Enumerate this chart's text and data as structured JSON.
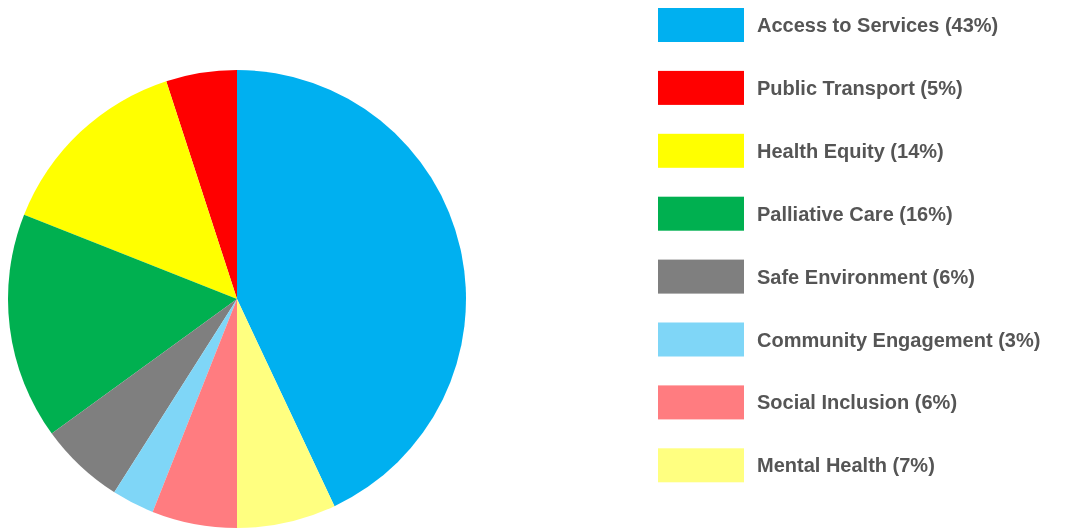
{
  "chart_data": {
    "type": "pie",
    "categories": [
      "Access to Services (43%)",
      "Public Transport (5%)",
      "Health Equity (14%)",
      "Palliative Care (16%)",
      "Safe Environment (6%)",
      "Community Engagement (3%)",
      "Social Inclusion (6%)",
      "Mental Health (7%)"
    ],
    "values": [
      43,
      5,
      14,
      16,
      6,
      3,
      6,
      7
    ],
    "colors": [
      "#00b0f0",
      "#ff0000",
      "#ffff00",
      "#00b050",
      "#7f7f7f",
      "#7fd6f7",
      "#ff7c80",
      "#ffff80"
    ],
    "legend": "right"
  }
}
